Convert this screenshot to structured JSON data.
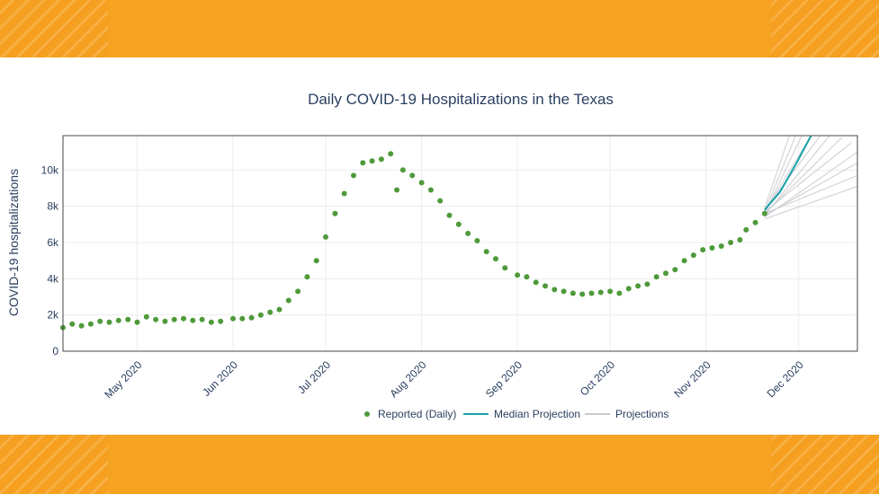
{
  "chart_data": {
    "type": "scatter",
    "title": "Daily COVID-19 Hospitalizations in the Texas",
    "ylabel": "COVID-19 hospitalizations",
    "xlabel": "",
    "xlim": [
      "2020-04-07",
      "2020-12-20"
    ],
    "ylim": [
      0,
      11900
    ],
    "grid": true,
    "legend_position": "bottom",
    "x_ticks": [
      {
        "date": "2020-05-01",
        "label": "May 2020"
      },
      {
        "date": "2020-06-01",
        "label": "Jun 2020"
      },
      {
        "date": "2020-07-01",
        "label": "Jul 2020"
      },
      {
        "date": "2020-08-01",
        "label": "Aug 2020"
      },
      {
        "date": "2020-09-01",
        "label": "Sep 2020"
      },
      {
        "date": "2020-10-01",
        "label": "Oct 2020"
      },
      {
        "date": "2020-11-01",
        "label": "Nov 2020"
      },
      {
        "date": "2020-12-01",
        "label": "Dec 2020"
      }
    ],
    "y_ticks": [
      {
        "value": 0,
        "label": "0"
      },
      {
        "value": 2000,
        "label": "2k"
      },
      {
        "value": 4000,
        "label": "4k"
      },
      {
        "value": 6000,
        "label": "6k"
      },
      {
        "value": 8000,
        "label": "8k"
      },
      {
        "value": 10000,
        "label": "10k"
      }
    ],
    "legend": [
      {
        "name": "Reported (Daily)",
        "symbol": "marker",
        "color": "#4e9a3a"
      },
      {
        "name": "Median Projection",
        "symbol": "line",
        "color": "#17a2a8"
      },
      {
        "name": "Projections",
        "symbol": "line",
        "color": "#c9c9cf"
      }
    ],
    "series": [
      {
        "name": "Reported (Daily)",
        "mode": "markers",
        "color": "#4e9a3a",
        "points": [
          [
            "2020-04-07",
            1300
          ],
          [
            "2020-04-10",
            1500
          ],
          [
            "2020-04-13",
            1400
          ],
          [
            "2020-04-16",
            1500
          ],
          [
            "2020-04-19",
            1650
          ],
          [
            "2020-04-22",
            1600
          ],
          [
            "2020-04-25",
            1700
          ],
          [
            "2020-04-28",
            1750
          ],
          [
            "2020-05-01",
            1600
          ],
          [
            "2020-05-04",
            1900
          ],
          [
            "2020-05-07",
            1750
          ],
          [
            "2020-05-10",
            1650
          ],
          [
            "2020-05-13",
            1750
          ],
          [
            "2020-05-16",
            1800
          ],
          [
            "2020-05-19",
            1700
          ],
          [
            "2020-05-22",
            1750
          ],
          [
            "2020-05-25",
            1600
          ],
          [
            "2020-05-28",
            1650
          ],
          [
            "2020-06-01",
            1800
          ],
          [
            "2020-06-04",
            1800
          ],
          [
            "2020-06-07",
            1850
          ],
          [
            "2020-06-10",
            2000
          ],
          [
            "2020-06-13",
            2150
          ],
          [
            "2020-06-16",
            2300
          ],
          [
            "2020-06-19",
            2800
          ],
          [
            "2020-06-22",
            3300
          ],
          [
            "2020-06-25",
            4100
          ],
          [
            "2020-06-28",
            5000
          ],
          [
            "2020-07-01",
            6300
          ],
          [
            "2020-07-04",
            7600
          ],
          [
            "2020-07-07",
            8700
          ],
          [
            "2020-07-10",
            9700
          ],
          [
            "2020-07-13",
            10400
          ],
          [
            "2020-07-16",
            10500
          ],
          [
            "2020-07-19",
            10600
          ],
          [
            "2020-07-22",
            10900
          ],
          [
            "2020-07-24",
            8900
          ],
          [
            "2020-07-26",
            10000
          ],
          [
            "2020-07-29",
            9700
          ],
          [
            "2020-08-01",
            9300
          ],
          [
            "2020-08-04",
            8900
          ],
          [
            "2020-08-07",
            8300
          ],
          [
            "2020-08-10",
            7500
          ],
          [
            "2020-08-13",
            7000
          ],
          [
            "2020-08-16",
            6500
          ],
          [
            "2020-08-19",
            6100
          ],
          [
            "2020-08-22",
            5500
          ],
          [
            "2020-08-25",
            5100
          ],
          [
            "2020-08-28",
            4600
          ],
          [
            "2020-09-01",
            4200
          ],
          [
            "2020-09-04",
            4100
          ],
          [
            "2020-09-07",
            3800
          ],
          [
            "2020-09-10",
            3600
          ],
          [
            "2020-09-13",
            3400
          ],
          [
            "2020-09-16",
            3300
          ],
          [
            "2020-09-19",
            3200
          ],
          [
            "2020-09-22",
            3150
          ],
          [
            "2020-09-25",
            3200
          ],
          [
            "2020-09-28",
            3250
          ],
          [
            "2020-10-01",
            3300
          ],
          [
            "2020-10-04",
            3200
          ],
          [
            "2020-10-07",
            3450
          ],
          [
            "2020-10-10",
            3600
          ],
          [
            "2020-10-13",
            3700
          ],
          [
            "2020-10-16",
            4100
          ],
          [
            "2020-10-19",
            4300
          ],
          [
            "2020-10-22",
            4500
          ],
          [
            "2020-10-25",
            5000
          ],
          [
            "2020-10-28",
            5300
          ],
          [
            "2020-10-31",
            5600
          ],
          [
            "2020-11-03",
            5700
          ],
          [
            "2020-11-06",
            5800
          ],
          [
            "2020-11-09",
            6000
          ],
          [
            "2020-11-12",
            6150
          ],
          [
            "2020-11-14",
            6700
          ],
          [
            "2020-11-17",
            7100
          ],
          [
            "2020-11-20",
            7600
          ]
        ]
      },
      {
        "name": "Median Projection",
        "mode": "line",
        "color": "#17a2a8",
        "points": [
          [
            "2020-11-20",
            7800
          ],
          [
            "2020-11-25",
            8800
          ],
          [
            "2020-11-30",
            10300
          ],
          [
            "2020-12-05",
            11900
          ]
        ]
      },
      {
        "name": "Projections",
        "mode": "lines",
        "color": "#c9c9cf",
        "lines": [
          [
            [
              "2020-11-20",
              7600
            ],
            [
              "2020-12-02",
              11900
            ]
          ],
          [
            [
              "2020-11-20",
              7700
            ],
            [
              "2020-12-05",
              11900
            ]
          ],
          [
            [
              "2020-11-20",
              7800
            ],
            [
              "2020-12-08",
              11900
            ]
          ],
          [
            [
              "2020-11-20",
              7500
            ],
            [
              "2020-12-11",
              11900
            ]
          ],
          [
            [
              "2020-11-20",
              7600
            ],
            [
              "2020-12-15",
              11800
            ]
          ],
          [
            [
              "2020-11-20",
              7700
            ],
            [
              "2020-12-18",
              11500
            ]
          ],
          [
            [
              "2020-11-20",
              7400
            ],
            [
              "2020-12-20",
              11000
            ]
          ],
          [
            [
              "2020-11-20",
              7500
            ],
            [
              "2020-12-20",
              10400
            ]
          ],
          [
            [
              "2020-11-20",
              7600
            ],
            [
              "2020-12-20",
              9700
            ]
          ],
          [
            [
              "2020-11-20",
              7300
            ],
            [
              "2020-12-20",
              9100
            ]
          ],
          [
            [
              "2020-11-20",
              7700
            ],
            [
              "2020-11-30",
              11900
            ]
          ],
          [
            [
              "2020-11-20",
              7900
            ],
            [
              "2020-11-28",
              11900
            ]
          ]
        ]
      }
    ]
  }
}
